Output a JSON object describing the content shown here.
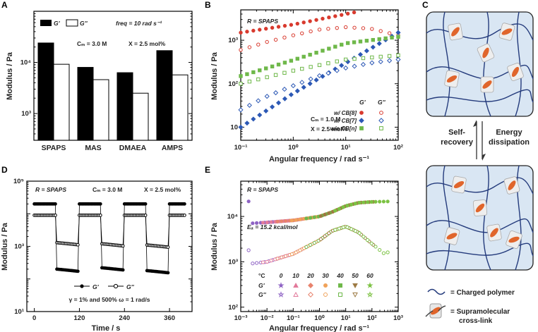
{
  "panels": {
    "A": {
      "letter": "A",
      "ylabel": "Modulus / Pa",
      "legend": {
        "gp": "G'",
        "gpp": "G''",
        "freq": "freq = 10 rad s⁻¹"
      },
      "notes": {
        "cm": "Cₘ = 3.0 M",
        "x": "X = 2.5 mol%"
      },
      "yticks": [
        "10³",
        "10⁴"
      ]
    },
    "B": {
      "letter": "B",
      "title": "R = SPAPS",
      "ylabel": "Modulus / Pa",
      "xlabel": "Angular frequency / rad s⁻¹",
      "notes": {
        "cm": "Cₘ = 1.0 M",
        "x": "X = 2.5 mol%"
      },
      "legend_head": {
        "gp": "G'",
        "gpp": "G''"
      },
      "legend_rows": [
        "w/ CB[8]",
        "w/ CB[7]",
        "w/o CB[n]"
      ],
      "xticks": [
        "10⁻¹",
        "10⁰",
        "10¹",
        "10²"
      ],
      "yticks": [
        "10",
        "10²",
        "10³"
      ]
    },
    "C": {
      "letter": "C",
      "self_recovery": [
        "Self-",
        "recovery"
      ],
      "energy_dissipation": [
        "Energy",
        "dissipation"
      ],
      "legend_polymer": "= Charged polymer",
      "legend_crosslink": [
        "= Supramolecular",
        "cross-link"
      ]
    },
    "D": {
      "letter": "D",
      "title": "R = SPAPS",
      "notes": {
        "cm": "Cₘ = 3.0 M",
        "x": "X = 2.5 mol%"
      },
      "ylabel": "Modulus / Pa",
      "xlabel": "Time / s",
      "legend": {
        "gp": "G'",
        "gpp": "G''"
      },
      "strain_note": "γ = 1% and 500%   ω = 1 rad/s",
      "xticks": [
        "0",
        "120",
        "240",
        "360"
      ],
      "yticks": [
        "10¹",
        "10³",
        "10⁵"
      ]
    },
    "E": {
      "letter": "E",
      "title": "R = SPAPS",
      "ea": "Eₐ = 15.2 kcal/mol",
      "ylabel": "Modulus / Pa",
      "xlabel": "Angular frequency / rad s⁻¹",
      "temp_header": "°C",
      "temps": [
        "0",
        "10",
        "20",
        "30",
        "40",
        "50",
        "60"
      ],
      "temp_colors": [
        "#8e63c4",
        "#e2799a",
        "#e8836d",
        "#f0a25a",
        "#6fb84a",
        "#9d7a43",
        "#7cc243"
      ],
      "row_gp": "G'",
      "row_gpp": "G''",
      "xticks": [
        "10⁻³",
        "10⁻²",
        "10⁻¹",
        "10⁰",
        "10¹",
        "10²",
        "10³"
      ],
      "yticks": [
        "10²",
        "10³",
        "10⁴"
      ]
    }
  },
  "chart_data": [
    {
      "panel": "A",
      "type": "bar",
      "categories": [
        "SPAPS",
        "MAS",
        "DMAEA",
        "AMPS"
      ],
      "series": [
        {
          "name": "G'",
          "color": "#000000",
          "values": [
            24000,
            8000,
            6300,
            17000
          ]
        },
        {
          "name": "G''",
          "color": "#ffffff",
          "values": [
            9200,
            4600,
            2500,
            5700
          ]
        }
      ],
      "ylabel": "Modulus / Pa",
      "yscale": "log",
      "ylim": [
        300,
        100000
      ]
    },
    {
      "panel": "B",
      "type": "scatter",
      "xscale": "log",
      "yscale": "log",
      "xlim": [
        0.1,
        100
      ],
      "ylim": [
        5,
        5000
      ],
      "xlabel": "Angular frequency / rad s⁻¹",
      "ylabel": "Modulus / Pa",
      "series": [
        {
          "name": "w/ CB[8] G'",
          "marker": "circle",
          "filled": true,
          "color": "#d83a2e",
          "x": [
            0.1,
            1,
            10,
            100
          ],
          "y": [
            1500,
            2300,
            4000,
            7000
          ]
        },
        {
          "name": "w/ CB[8] G''",
          "marker": "circle",
          "filled": false,
          "color": "#d83a2e",
          "x": [
            0.1,
            0.3,
            1,
            3,
            10,
            30,
            100
          ],
          "y": [
            600,
            900,
            1300,
            1750,
            2000,
            1850,
            1300
          ]
        },
        {
          "name": "w/ CB[7] G'",
          "marker": "diamond",
          "filled": true,
          "color": "#2d59b5",
          "x": [
            0.1,
            1,
            10,
            100
          ],
          "y": [
            10,
            60,
            300,
            1500
          ]
        },
        {
          "name": "w/ CB[7] G''",
          "marker": "diamond",
          "filled": false,
          "color": "#2d59b5",
          "x": [
            0.1,
            0.3,
            1,
            3,
            10,
            30,
            100
          ],
          "y": [
            25,
            50,
            90,
            150,
            230,
            300,
            360
          ]
        },
        {
          "name": "w/o CB[n] G'",
          "marker": "square",
          "filled": true,
          "color": "#6fb84a",
          "x": [
            0.1,
            1,
            10,
            100
          ],
          "y": [
            150,
            350,
            850,
            1200
          ]
        },
        {
          "name": "w/o CB[n] G''",
          "marker": "square",
          "filled": false,
          "color": "#6fb84a",
          "x": [
            0.1,
            1,
            10,
            100
          ],
          "y": [
            100,
            200,
            360,
            450
          ]
        }
      ]
    },
    {
      "panel": "D",
      "type": "line",
      "xlabel": "Time / s",
      "ylabel": "Modulus / Pa",
      "yscale": "log",
      "xlim": [
        -20,
        420
      ],
      "ylim": [
        10,
        100000
      ],
      "series": [
        {
          "name": "G'",
          "marker": "circle",
          "filled": true,
          "color": "#000000",
          "x": [
            0,
            58,
            62,
            118,
            122,
            178,
            182,
            238,
            242,
            298,
            302,
            360,
            400
          ],
          "y": [
            20000,
            20000,
            200,
            150,
            20000,
            20000,
            220,
            160,
            20000,
            20000,
            180,
            140,
            20000
          ]
        },
        {
          "name": "G''",
          "marker": "circle",
          "filled": false,
          "color": "#000000",
          "x": [
            0,
            58,
            62,
            118,
            122,
            178,
            182,
            238,
            242,
            298,
            302,
            360,
            400
          ],
          "y": [
            9000,
            9000,
            1300,
            1150,
            9000,
            9000,
            1200,
            1100,
            9000,
            9000,
            1100,
            1000,
            9000
          ]
        }
      ]
    },
    {
      "panel": "E",
      "type": "scatter",
      "xscale": "log",
      "yscale": "log",
      "xlim": [
        0.001,
        1000
      ],
      "ylim": [
        80,
        60000
      ],
      "xlabel": "Angular frequency / rad s⁻¹",
      "ylabel": "Modulus / Pa",
      "series": [
        {
          "name": "G' master curve",
          "filled": true,
          "x": [
            0.002,
            0.01,
            0.1,
            1,
            3,
            10,
            30,
            100,
            600
          ],
          "y": [
            7000,
            7400,
            8200,
            10000,
            12500,
            17000,
            20000,
            21000,
            21500
          ]
        },
        {
          "name": "G'' master curve",
          "filled": false,
          "x": [
            0.002,
            0.01,
            0.1,
            1,
            3,
            10,
            30,
            100,
            300,
            600
          ],
          "y": [
            900,
            1000,
            1500,
            3000,
            4800,
            6000,
            4500,
            2500,
            1500,
            1800
          ]
        }
      ]
    }
  ]
}
